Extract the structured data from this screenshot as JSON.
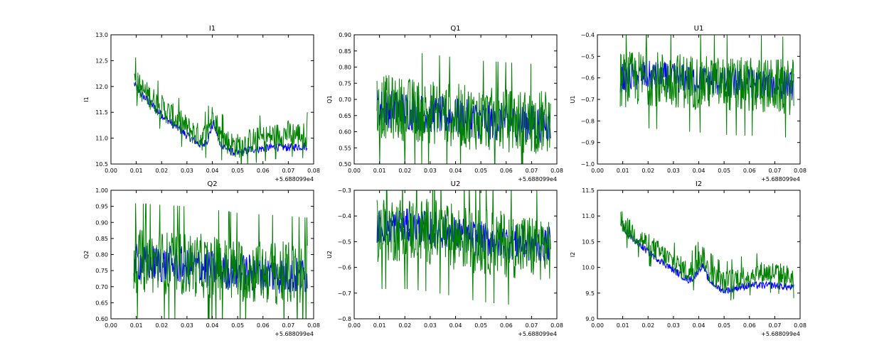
{
  "figure": {
    "background": "#ffffff"
  },
  "chart_data": [
    {
      "type": "line",
      "title": "I1",
      "ylabel": "I1",
      "xlim": [
        0.0,
        0.08
      ],
      "ylim": [
        10.5,
        13.0
      ],
      "xticks": [
        "0.00",
        "0.01",
        "0.02",
        "0.03",
        "0.04",
        "0.05",
        "0.06",
        "0.07",
        "0.08"
      ],
      "yticks": [
        "10.5",
        "11.0",
        "11.5",
        "12.0",
        "12.5",
        "13.0"
      ],
      "x_offset_label": "+5.688099e4",
      "x_range": [
        0.0092,
        0.0775
      ],
      "series": [
        {
          "color": "#0000ff",
          "x": [
            0.0092,
            0.012,
            0.02,
            0.03,
            0.036,
            0.038,
            0.0405,
            0.043,
            0.047,
            0.05,
            0.055,
            0.06,
            0.065,
            0.07,
            0.0775
          ],
          "values": [
            12.05,
            11.85,
            11.45,
            11.05,
            10.85,
            10.95,
            11.3,
            10.9,
            10.75,
            10.7,
            10.78,
            10.8,
            10.83,
            10.82,
            10.85
          ],
          "noise": 0.08
        },
        {
          "color": "#008000",
          "x": [
            0.0092,
            0.012,
            0.02,
            0.03,
            0.036,
            0.038,
            0.0405,
            0.043,
            0.047,
            0.05,
            0.055,
            0.06,
            0.065,
            0.07,
            0.0775
          ],
          "values": [
            12.15,
            11.95,
            11.6,
            11.2,
            11.0,
            11.1,
            11.5,
            11.05,
            10.9,
            10.85,
            10.95,
            11.0,
            11.05,
            11.1,
            11.05
          ],
          "noise": 0.25
        }
      ]
    },
    {
      "type": "line",
      "title": "Q1",
      "ylabel": "Q1",
      "xlim": [
        0.0,
        0.08
      ],
      "ylim": [
        0.5,
        0.9
      ],
      "xticks": [
        "0.00",
        "0.01",
        "0.02",
        "0.03",
        "0.04",
        "0.05",
        "0.06",
        "0.07",
        "0.08"
      ],
      "yticks": [
        "0.50",
        "0.55",
        "0.60",
        "0.65",
        "0.70",
        "0.75",
        "0.80",
        "0.85",
        "0.90"
      ],
      "x_offset_label": "+5.688099e4",
      "x_range": [
        0.009,
        0.0775
      ],
      "series": [
        {
          "color": "#0000ff",
          "x": [
            0.009,
            0.02,
            0.03,
            0.04,
            0.05,
            0.06,
            0.07,
            0.0775
          ],
          "values": [
            0.675,
            0.665,
            0.655,
            0.645,
            0.635,
            0.63,
            0.625,
            0.625
          ],
          "noise": 0.06
        },
        {
          "color": "#008000",
          "x": [
            0.009,
            0.02,
            0.03,
            0.04,
            0.05,
            0.06,
            0.07,
            0.0775
          ],
          "values": [
            0.68,
            0.67,
            0.66,
            0.65,
            0.64,
            0.635,
            0.63,
            0.63
          ],
          "noise": 0.1
        }
      ]
    },
    {
      "type": "line",
      "title": "U1",
      "ylabel": "U1",
      "xlim": [
        0.0,
        0.08
      ],
      "ylim": [
        -1.0,
        -0.4
      ],
      "xticks": [
        "0.00",
        "0.01",
        "0.02",
        "0.03",
        "0.04",
        "0.05",
        "0.06",
        "0.07",
        "0.08"
      ],
      "yticks": [
        "−1.0",
        "−0.9",
        "−0.8",
        "−0.7",
        "−0.6",
        "−0.5",
        "−0.4"
      ],
      "x_offset_label": "+5.688099e4",
      "x_range": [
        0.009,
        0.0775
      ],
      "series": [
        {
          "color": "#0000ff",
          "x": [
            0.009,
            0.02,
            0.03,
            0.04,
            0.05,
            0.06,
            0.07,
            0.0775
          ],
          "values": [
            -0.6,
            -0.59,
            -0.6,
            -0.61,
            -0.62,
            -0.625,
            -0.63,
            -0.635
          ],
          "noise": 0.07
        },
        {
          "color": "#008000",
          "x": [
            0.009,
            0.02,
            0.03,
            0.04,
            0.05,
            0.06,
            0.07,
            0.0775
          ],
          "values": [
            -0.61,
            -0.6,
            -0.61,
            -0.62,
            -0.63,
            -0.635,
            -0.64,
            -0.645
          ],
          "noise": 0.13
        }
      ]
    },
    {
      "type": "line",
      "title": "Q2",
      "ylabel": "Q2",
      "xlim": [
        0.0,
        0.08
      ],
      "ylim": [
        0.6,
        1.0
      ],
      "xticks": [
        "0.00",
        "0.01",
        "0.02",
        "0.03",
        "0.04",
        "0.05",
        "0.06",
        "0.07",
        "0.08"
      ],
      "yticks": [
        "0.60",
        "0.65",
        "0.70",
        "0.75",
        "0.80",
        "0.85",
        "0.90",
        "0.95",
        "1.00"
      ],
      "x_offset_label": "+5.688099e4",
      "x_range": [
        0.009,
        0.0775
      ],
      "series": [
        {
          "color": "#0000ff",
          "x": [
            0.009,
            0.02,
            0.03,
            0.04,
            0.05,
            0.06,
            0.07,
            0.0775
          ],
          "values": [
            0.775,
            0.77,
            0.765,
            0.755,
            0.745,
            0.74,
            0.735,
            0.73
          ],
          "noise": 0.06
        },
        {
          "color": "#008000",
          "x": [
            0.009,
            0.02,
            0.03,
            0.04,
            0.05,
            0.06,
            0.07,
            0.0775
          ],
          "values": [
            0.78,
            0.775,
            0.77,
            0.76,
            0.75,
            0.745,
            0.74,
            0.735
          ],
          "noise": 0.1
        }
      ]
    },
    {
      "type": "line",
      "title": "U2",
      "ylabel": "U2",
      "xlim": [
        0.0,
        0.08
      ],
      "ylim": [
        -0.8,
        -0.3
      ],
      "xticks": [
        "0.00",
        "0.01",
        "0.02",
        "0.03",
        "0.04",
        "0.05",
        "0.06",
        "0.07",
        "0.08"
      ],
      "yticks": [
        "−0.8",
        "−0.7",
        "−0.6",
        "−0.5",
        "−0.4",
        "−0.3"
      ],
      "x_offset_label": "+5.688099e4",
      "x_range": [
        0.009,
        0.0775
      ],
      "series": [
        {
          "color": "#0000ff",
          "x": [
            0.009,
            0.02,
            0.03,
            0.04,
            0.05,
            0.06,
            0.07,
            0.0775
          ],
          "values": [
            -0.44,
            -0.44,
            -0.45,
            -0.47,
            -0.49,
            -0.5,
            -0.51,
            -0.51
          ],
          "noise": 0.07
        },
        {
          "color": "#008000",
          "x": [
            0.009,
            0.02,
            0.03,
            0.04,
            0.05,
            0.06,
            0.07,
            0.0775
          ],
          "values": [
            -0.45,
            -0.45,
            -0.46,
            -0.48,
            -0.5,
            -0.51,
            -0.52,
            -0.52
          ],
          "noise": 0.13
        }
      ]
    },
    {
      "type": "line",
      "title": "I2",
      "ylabel": "I2",
      "xlim": [
        0.0,
        0.08
      ],
      "ylim": [
        9.0,
        11.5
      ],
      "xticks": [
        "0.00",
        "0.01",
        "0.02",
        "0.03",
        "0.04",
        "0.05",
        "0.06",
        "0.07",
        "0.08"
      ],
      "yticks": [
        "9.0",
        "9.5",
        "10.0",
        "10.5",
        "11.0",
        "11.5"
      ],
      "x_offset_label": "+5.688099e4",
      "x_range": [
        0.0092,
        0.0775
      ],
      "series": [
        {
          "color": "#0000ff",
          "x": [
            0.0092,
            0.012,
            0.02,
            0.03,
            0.036,
            0.038,
            0.0415,
            0.044,
            0.048,
            0.05,
            0.055,
            0.06,
            0.065,
            0.07,
            0.0775
          ],
          "values": [
            10.85,
            10.65,
            10.3,
            9.95,
            9.75,
            9.8,
            10.05,
            9.75,
            9.6,
            9.55,
            9.6,
            9.65,
            9.65,
            9.65,
            9.6
          ],
          "noise": 0.07
        },
        {
          "color": "#008000",
          "x": [
            0.0092,
            0.012,
            0.02,
            0.03,
            0.036,
            0.038,
            0.0415,
            0.044,
            0.048,
            0.05,
            0.055,
            0.06,
            0.065,
            0.07,
            0.0775
          ],
          "values": [
            10.95,
            10.75,
            10.45,
            10.1,
            9.9,
            9.95,
            10.25,
            9.9,
            9.75,
            9.7,
            9.8,
            9.85,
            9.9,
            9.9,
            9.8
          ],
          "noise": 0.22
        }
      ]
    }
  ]
}
